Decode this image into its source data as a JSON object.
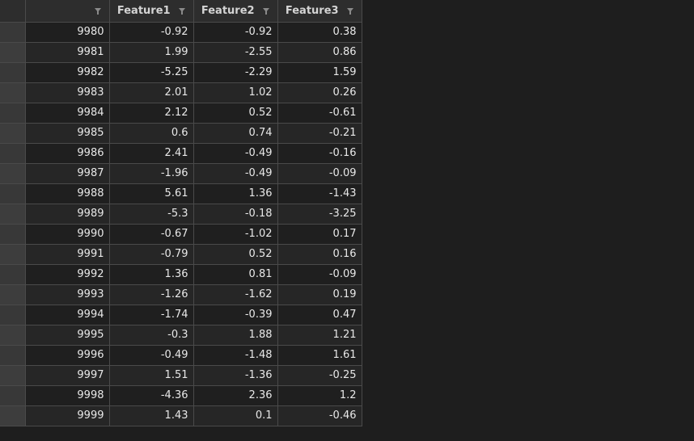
{
  "header": {
    "index_label": "",
    "columns": [
      "Feature1",
      "Feature2",
      "Feature3"
    ]
  },
  "rows": [
    {
      "index": "9980",
      "f1": "-0.92",
      "f2": "-0.92",
      "f3": "0.38"
    },
    {
      "index": "9981",
      "f1": "1.99",
      "f2": "-2.55",
      "f3": "0.86"
    },
    {
      "index": "9982",
      "f1": "-5.25",
      "f2": "-2.29",
      "f3": "1.59"
    },
    {
      "index": "9983",
      "f1": "2.01",
      "f2": "1.02",
      "f3": "0.26"
    },
    {
      "index": "9984",
      "f1": "2.12",
      "f2": "0.52",
      "f3": "-0.61"
    },
    {
      "index": "9985",
      "f1": "0.6",
      "f2": "0.74",
      "f3": "-0.21"
    },
    {
      "index": "9986",
      "f1": "2.41",
      "f2": "-0.49",
      "f3": "-0.16"
    },
    {
      "index": "9987",
      "f1": "-1.96",
      "f2": "-0.49",
      "f3": "-0.09"
    },
    {
      "index": "9988",
      "f1": "5.61",
      "f2": "1.36",
      "f3": "-1.43"
    },
    {
      "index": "9989",
      "f1": "-5.3",
      "f2": "-0.18",
      "f3": "-3.25"
    },
    {
      "index": "9990",
      "f1": "-0.67",
      "f2": "-1.02",
      "f3": "0.17"
    },
    {
      "index": "9991",
      "f1": "-0.79",
      "f2": "0.52",
      "f3": "0.16"
    },
    {
      "index": "9992",
      "f1": "1.36",
      "f2": "0.81",
      "f3": "-0.09"
    },
    {
      "index": "9993",
      "f1": "-1.26",
      "f2": "-1.62",
      "f3": "0.19"
    },
    {
      "index": "9994",
      "f1": "-1.74",
      "f2": "-0.39",
      "f3": "0.47"
    },
    {
      "index": "9995",
      "f1": "-0.3",
      "f2": "1.88",
      "f3": "1.21"
    },
    {
      "index": "9996",
      "f1": "-0.49",
      "f2": "-1.48",
      "f3": "1.61"
    },
    {
      "index": "9997",
      "f1": "1.51",
      "f2": "-1.36",
      "f3": "-0.25"
    },
    {
      "index": "9998",
      "f1": "-4.36",
      "f2": "2.36",
      "f3": "1.2"
    },
    {
      "index": "9999",
      "f1": "1.43",
      "f2": "0.1",
      "f3": "-0.46"
    }
  ],
  "icons": {
    "filter": "filter-icon"
  },
  "colors": {
    "background": "#1e1e1e",
    "header_bg": "#2d2d2d",
    "cell_text": "#e8e8e8",
    "grid_line": "#4a4a4a"
  }
}
